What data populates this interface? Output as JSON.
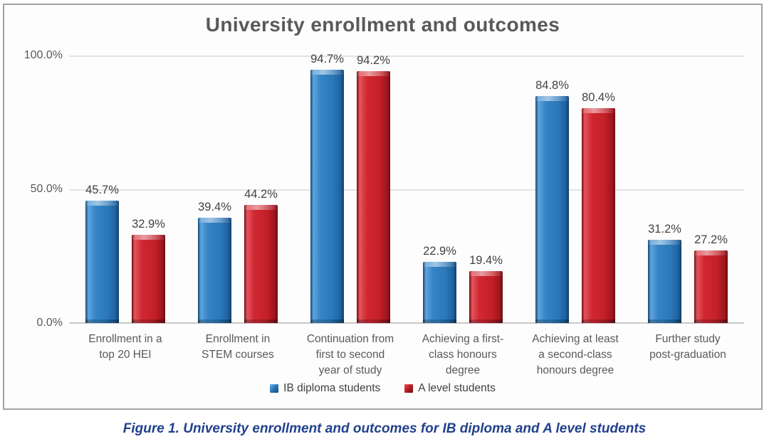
{
  "figure_caption": "Figure 1. University enrollment and outcomes for IB diploma and A level students",
  "caption_color": "#21418C",
  "chart_data": {
    "type": "bar",
    "title": "University enrollment and outcomes",
    "categories": [
      "Enrollment in a top 20 HEI",
      "Enrollment in STEM courses",
      "Continuation from first to second year of study",
      "Achieving a first-class honours degree",
      "Achieving at least a second-class honours degree",
      "Further study post-graduation"
    ],
    "category_lines": [
      [
        "Enrollment in a",
        "top 20 HEI"
      ],
      [
        "Enrollment in",
        "STEM courses"
      ],
      [
        "Continuation from",
        "first to second",
        "year of study"
      ],
      [
        "Achieving a first-",
        "class honours",
        "degree"
      ],
      [
        "Achieving at least",
        "a second-class",
        "honours degree"
      ],
      [
        "Further study",
        "post-graduation"
      ]
    ],
    "series": [
      {
        "name": "IB diploma students",
        "color": "#2E7BBD",
        "values": [
          45.7,
          39.4,
          94.7,
          22.9,
          84.8,
          31.2
        ],
        "labels": [
          "45.7%",
          "39.4%",
          "94.7%",
          "22.9%",
          "84.8%",
          "31.2%"
        ]
      },
      {
        "name": "A level students",
        "color": "#C41F28",
        "values": [
          32.9,
          44.2,
          94.2,
          19.4,
          80.4,
          27.2
        ],
        "labels": [
          "32.9%",
          "44.2%",
          "94.2%",
          "19.4%",
          "80.4%",
          "27.2%"
        ]
      }
    ],
    "ylim": [
      0,
      100
    ],
    "yticks": [
      {
        "value": 100,
        "label": "100.0%"
      },
      {
        "value": 50,
        "label": "50.0%"
      },
      {
        "value": 0,
        "label": "0.0%"
      }
    ],
    "grid": true,
    "legend_position": "bottom"
  }
}
